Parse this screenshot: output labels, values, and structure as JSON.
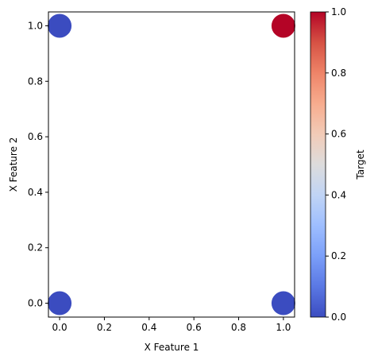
{
  "chart_data": {
    "type": "scatter",
    "xlabel": "X Feature 1",
    "ylabel": "X Feature 2",
    "xlim": [
      -0.05,
      1.05
    ],
    "ylim": [
      -0.05,
      1.05
    ],
    "xticks": [
      0.0,
      0.2,
      0.4,
      0.6,
      0.8,
      1.0
    ],
    "yticks": [
      0.0,
      0.2,
      0.4,
      0.6,
      0.8,
      1.0
    ],
    "grid": false,
    "points": [
      {
        "x": 0.0,
        "y": 0.0,
        "target": 0
      },
      {
        "x": 0.0,
        "y": 1.0,
        "target": 0
      },
      {
        "x": 1.0,
        "y": 0.0,
        "target": 0
      },
      {
        "x": 1.0,
        "y": 1.0,
        "target": 1
      }
    ],
    "colorbar": {
      "label": "Target",
      "colormap": "coolwarm",
      "range": [
        0.0,
        1.0
      ],
      "ticks": [
        0.0,
        0.2,
        0.4,
        0.6,
        0.8,
        1.0
      ],
      "low_color": "#3b4cc0",
      "high_color": "#b40426"
    }
  }
}
